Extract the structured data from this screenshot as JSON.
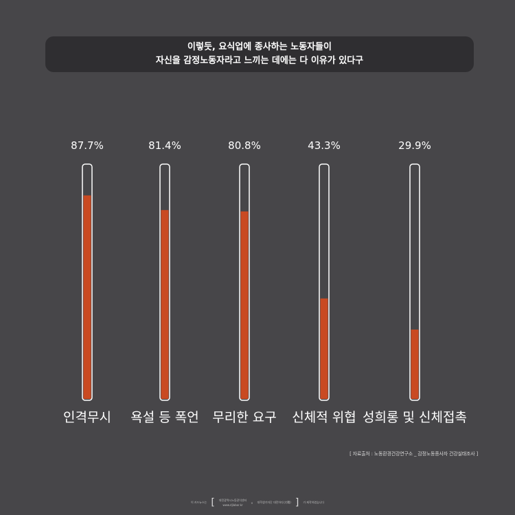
{
  "title": {
    "line1": "이렇듯, 요식업에 종사하는 노동자들이",
    "line2": "자신을 감정노동자라고 느끼는 데에는 다 이유가 있다구"
  },
  "chart_data": {
    "type": "bar",
    "categories": [
      "인격무시",
      "욕설 등 폭언",
      "무리한 요구",
      "신체적 위협",
      "성희롱 및 신체접촉"
    ],
    "values": [
      87.7,
      81.4,
      80.8,
      43.3,
      29.9
    ],
    "value_labels": [
      "87.7%",
      "81.4%",
      "80.8%",
      "43.3%",
      "29.9%"
    ],
    "ylim": [
      0,
      100
    ],
    "orientation": "vertical",
    "grid": false,
    "colors": {
      "fill": "#c94a22",
      "track_border": "#ffffff",
      "background": "#474649"
    }
  },
  "source": "[ 자료출처 : 노동환경건강연구소 _ 감정노동종사자 건강실태조사 ]",
  "footer": {
    "prefix": "이 카드뉴스는",
    "org1": "대전광역시노동권익센터",
    "url1": "www.djlabor.kr",
    "separator": "×",
    "org2": "대학생기자단 대전하다(大戰)",
    "suffix": "가 제작하였습니다"
  }
}
